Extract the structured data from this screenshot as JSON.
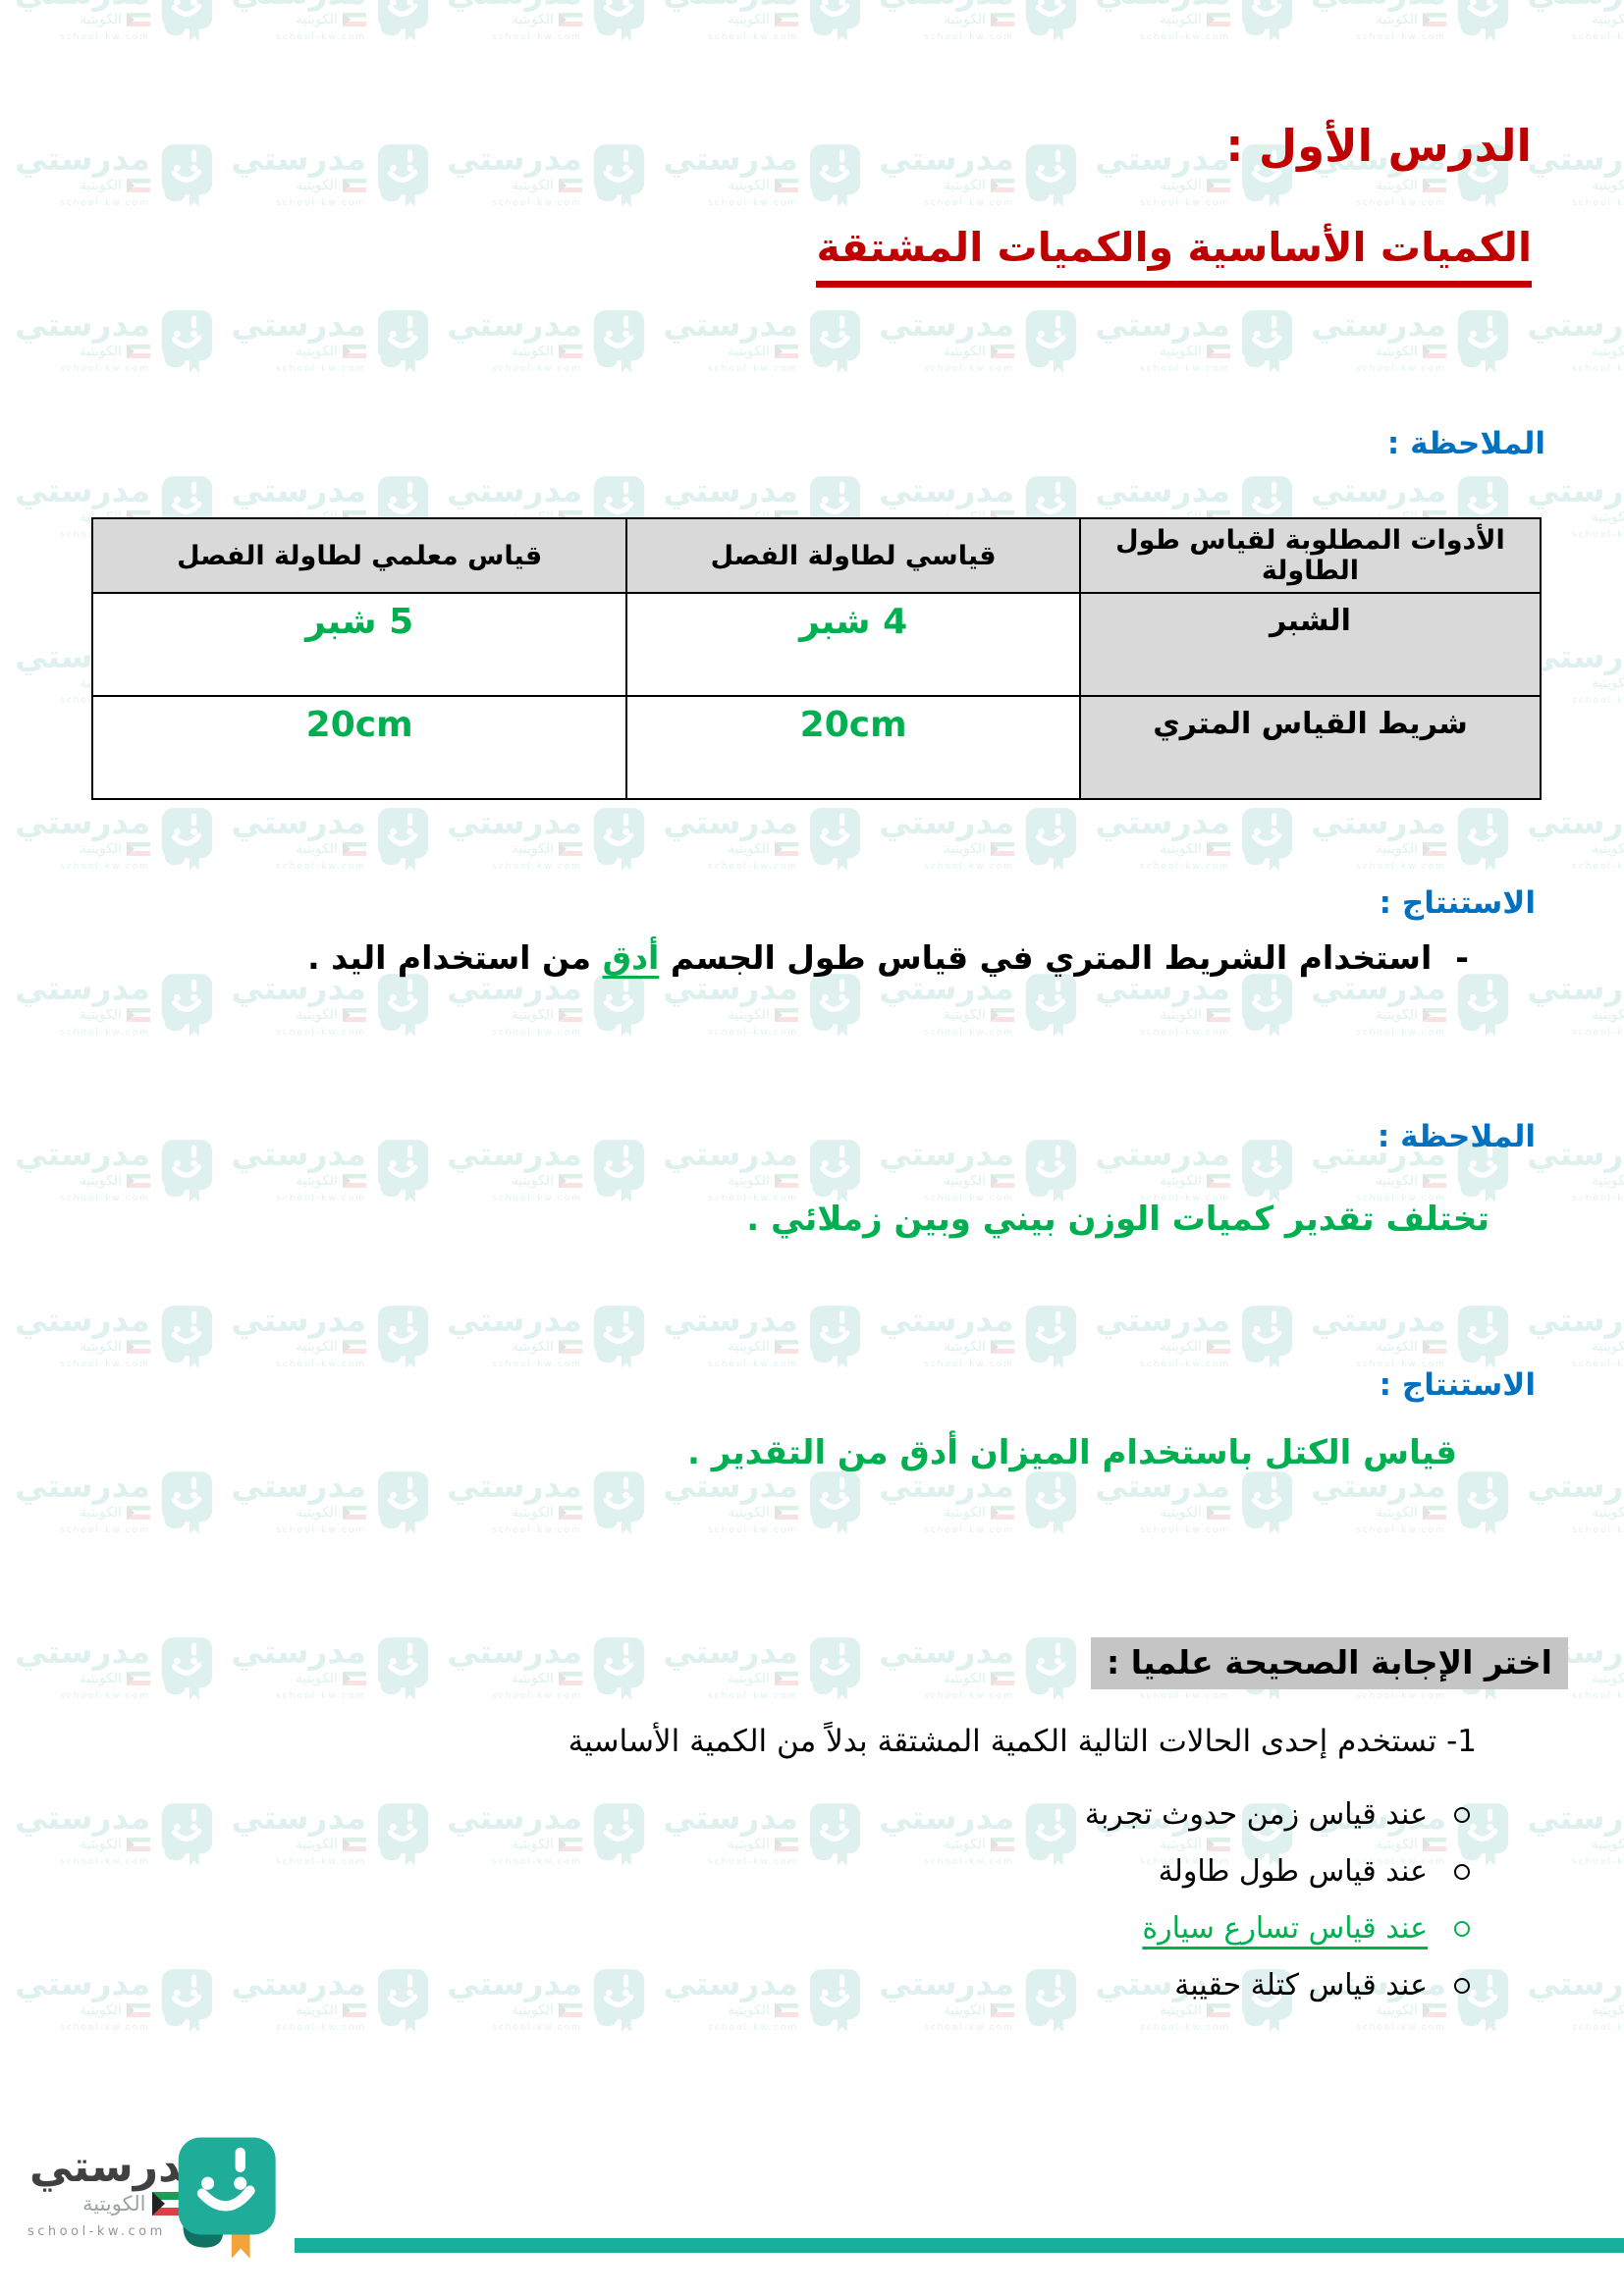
{
  "page": {
    "title": "الدرس الأول :",
    "subtitle": "الكميات الأساسية والكميات المشتقة"
  },
  "sections": {
    "note1_label": "الملاحظة :",
    "conclusion1_label": "الاستنتاج :",
    "conclusion1": {
      "dash": "-",
      "before": "استخدام الشريط المتري في قياس طول الجسم  ",
      "highlight": "أدق",
      "after": " من استخدام اليد ."
    },
    "note2_label": "الملاحظة :",
    "note2_text": "تختلف تقدير كميات الوزن بيني وبين زملائي .",
    "conclusion2_label": "الاستنتاج :",
    "conclusion2_text": "قياس الكتل باستخدام الميزان أدق من التقدير ."
  },
  "table": {
    "headers": [
      "الأدوات المطلوبة لقياس طول الطاولة",
      "قياسي لطاولة الفصل",
      "قياس معلمي لطاولة الفصل"
    ],
    "rows": [
      {
        "cells": [
          "الشبر",
          "4 شبر",
          "5 شبر"
        ]
      },
      {
        "cells": [
          "شريط القياس المتري",
          "20cm",
          "20cm"
        ]
      }
    ]
  },
  "quiz": {
    "heading": "اختر الإجابة الصحيحة علميا  :",
    "question": "1- تستخدم إحدى الحالات التالية الكمية المشتقة بدلاً من الكمية الأساسية",
    "options": [
      {
        "label": "عند قياس زمن حدوث تجربة",
        "correct": false
      },
      {
        "label": "عند قياس طول طاولة",
        "correct": false
      },
      {
        "label": "عند قياس تسارع سيارة",
        "correct": true
      },
      {
        "label": "عند قياس كتلة حقيبة",
        "correct": false
      }
    ]
  },
  "footer": {
    "brand": "مدرستي",
    "brand_sub": "الكويتية",
    "website": "school-kw.com"
  },
  "watermark": {
    "brand": "مدرستي",
    "brand_sub": "الكويتية",
    "website": "school-kw.com"
  },
  "colors": {
    "title_red": "#C00000",
    "heading_blue": "#0070C0",
    "answer_green": "#00B050",
    "table_header_gray": "#D9D9D9",
    "highlight_gray": "#C5C5C5",
    "brand_teal": "#17B09A",
    "ribbon_orange": "#F2A33C"
  }
}
